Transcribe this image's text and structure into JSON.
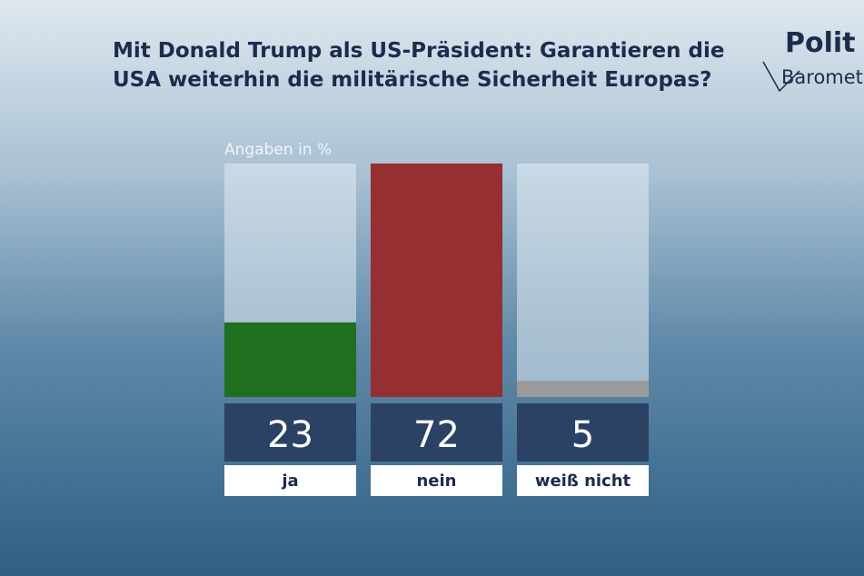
{
  "chart_data": {
    "type": "bar",
    "title": "Mit Donald Trump als US-Präsident: Garantieren die USA weiterhin die militärische Sicherheit Europas?",
    "subtitle": "Angaben in %",
    "categories": [
      "ja",
      "nein",
      "weiß nicht"
    ],
    "values": [
      23,
      72,
      5
    ],
    "colors": [
      "#1f6f1f",
      "#952f31",
      "#9a9a9a"
    ]
  },
  "logo": {
    "line1": "Polit",
    "line2": "Barometer"
  }
}
